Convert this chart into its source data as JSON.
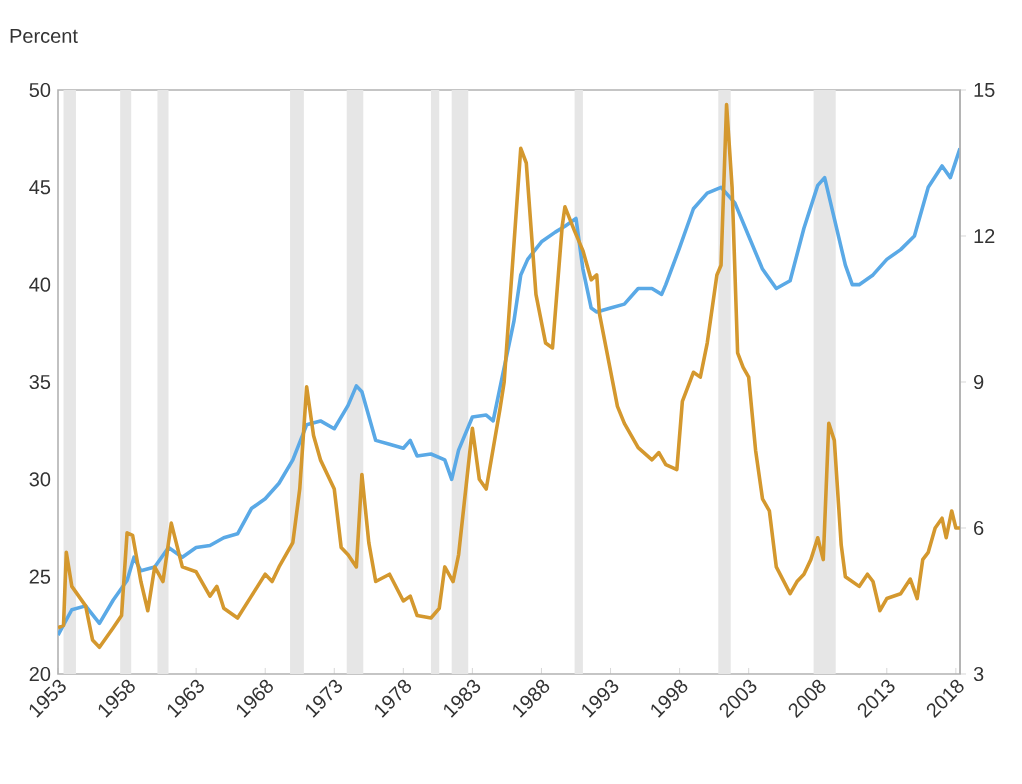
{
  "chart_data": {
    "type": "line",
    "ylabel": "Percent",
    "xlim": [
      1953,
      2018.3
    ],
    "xticks": [
      1953,
      1958,
      1963,
      1968,
      1973,
      1978,
      1983,
      1988,
      1993,
      1998,
      2003,
      2008,
      2013,
      2018
    ],
    "ylim": [
      20,
      50
    ],
    "yticks": [
      20,
      25,
      30,
      35,
      40,
      45,
      50
    ],
    "y2lim": [
      3,
      15
    ],
    "y2ticks": [
      3,
      6,
      9,
      12,
      15
    ],
    "marker": "none",
    "line_style": "solid",
    "bands": [
      {
        "axis": "x",
        "from": 1953.4,
        "to": 1954.3,
        "color": "#e6e6e6"
      },
      {
        "axis": "x",
        "from": 1957.5,
        "to": 1958.3,
        "color": "#e6e6e6"
      },
      {
        "axis": "x",
        "from": 1960.2,
        "to": 1961.0,
        "color": "#e6e6e6"
      },
      {
        "axis": "x",
        "from": 1969.8,
        "to": 1970.8,
        "color": "#e6e6e6"
      },
      {
        "axis": "x",
        "from": 1973.9,
        "to": 1975.1,
        "color": "#e6e6e6"
      },
      {
        "axis": "x",
        "from": 1980.0,
        "to": 1980.6,
        "color": "#e6e6e6"
      },
      {
        "axis": "x",
        "from": 1981.5,
        "to": 1982.7,
        "color": "#e6e6e6"
      },
      {
        "axis": "x",
        "from": 1990.4,
        "to": 1991.0,
        "color": "#e6e6e6"
      },
      {
        "axis": "x",
        "from": 2000.8,
        "to": 2001.7,
        "color": "#e6e6e6"
      },
      {
        "axis": "x",
        "from": 2007.7,
        "to": 2009.3,
        "color": "#e6e6e6"
      }
    ],
    "series": [
      {
        "color": "#5aa9e6",
        "x": [
          1953,
          1954,
          1955,
          1956,
          1957,
          1958,
          1958.5,
          1959,
          1960,
          1961,
          1962,
          1963,
          1964,
          1965,
          1966,
          1967,
          1968,
          1969,
          1970,
          1971,
          1972,
          1973,
          1974,
          1974.6,
          1975,
          1976,
          1977,
          1978,
          1978.5,
          1979,
          1980,
          1981,
          1981.5,
          1982,
          1983,
          1984,
          1984.5,
          1985.2,
          1986,
          1986.5,
          1987,
          1988,
          1989,
          1989.7,
          1990.5,
          1991,
          1991.6,
          1992,
          1993,
          1994,
          1995,
          1996,
          1996.7,
          1997,
          1998,
          1999,
          2000,
          2001,
          2002,
          2003,
          2004,
          2005,
          2006,
          2007,
          2008,
          2008.5,
          2009,
          2010,
          2010.5,
          2011,
          2012,
          2013,
          2014,
          2015,
          2016,
          2017,
          2017.6,
          2018.3
        ],
        "values": [
          22.0,
          23.3,
          23.5,
          22.6,
          23.8,
          24.8,
          26.0,
          25.3,
          25.5,
          26.5,
          26.0,
          26.5,
          26.6,
          27.0,
          27.2,
          28.5,
          29.0,
          29.8,
          31.0,
          32.8,
          33.0,
          32.6,
          33.8,
          34.8,
          34.5,
          32.0,
          31.8,
          31.6,
          32.0,
          31.2,
          31.3,
          31.0,
          30.0,
          31.5,
          33.2,
          33.3,
          33.0,
          35.4,
          38.1,
          40.5,
          41.3,
          42.2,
          42.7,
          43.0,
          43.4,
          40.8,
          38.8,
          38.6,
          38.8,
          39.0,
          39.8,
          39.8,
          39.5,
          40.0,
          41.9,
          43.9,
          44.7,
          45.0,
          44.2,
          42.5,
          40.8,
          39.8,
          40.2,
          42.9,
          45.1,
          45.5,
          44.0,
          41.0,
          40.0,
          40.0,
          40.5,
          41.3,
          41.8,
          42.5,
          45.0,
          46.1,
          45.5,
          47.0
        ]
      },
      {
        "color": "#d4982e",
        "axis": "y2",
        "x": [
          1953,
          1953.4,
          1953.6,
          1954,
          1955,
          1955.5,
          1956,
          1957,
          1957.6,
          1958,
          1958.4,
          1959,
          1959.5,
          1960,
          1960.6,
          1961.2,
          1962,
          1963,
          1964,
          1964.5,
          1965,
          1966,
          1967,
          1968,
          1968.5,
          1969,
          1970,
          1970.5,
          1971,
          1971.5,
          1972,
          1973,
          1973.5,
          1974,
          1974.6,
          1975,
          1975.5,
          1976,
          1977,
          1978,
          1978.5,
          1979,
          1980,
          1980.6,
          1981,
          1981.6,
          1982,
          1983,
          1983.5,
          1984,
          1985,
          1985.3,
          1986.5,
          1986.9,
          1987.6,
          1988.3,
          1988.8,
          1989.5,
          1989.7,
          1990.4,
          1991,
          1991.6,
          1992,
          1992.2,
          1993.5,
          1994,
          1995,
          1996,
          1996.5,
          1997,
          1997.8,
          1998.2,
          1999,
          1999.5,
          2000,
          2000.7,
          2001,
          2001.4,
          2001.8,
          2002.2,
          2002.6,
          2003,
          2003.5,
          2004,
          2004.5,
          2005,
          2006,
          2006.5,
          2007,
          2007.5,
          2008,
          2008.4,
          2008.8,
          2009.2,
          2009.7,
          2010,
          2011,
          2011.6,
          2012,
          2012.5,
          2013,
          2014,
          2014.7,
          2015.2,
          2015.6,
          2016,
          2016.5,
          2017,
          2017.3,
          2017.7,
          2018,
          2018.3
        ],
        "values": [
          3.95,
          4.0,
          5.5,
          4.8,
          4.4,
          3.7,
          3.55,
          3.95,
          4.2,
          5.9,
          5.85,
          4.9,
          4.3,
          5.2,
          4.9,
          6.1,
          5.2,
          5.1,
          4.6,
          4.8,
          4.35,
          4.15,
          4.6,
          5.05,
          4.9,
          5.2,
          5.7,
          6.8,
          8.9,
          7.9,
          7.4,
          6.8,
          5.6,
          5.45,
          5.2,
          7.1,
          5.7,
          4.9,
          5.05,
          4.5,
          4.6,
          4.2,
          4.15,
          4.35,
          5.2,
          4.9,
          5.45,
          8.05,
          7.0,
          6.8,
          8.45,
          9.0,
          13.8,
          13.5,
          10.8,
          9.8,
          9.7,
          12.2,
          12.6,
          12.1,
          11.7,
          11.1,
          11.2,
          10.4,
          8.5,
          8.15,
          7.65,
          7.4,
          7.55,
          7.3,
          7.2,
          8.6,
          9.2,
          9.1,
          9.8,
          11.2,
          11.4,
          14.7,
          13.0,
          9.6,
          9.3,
          9.1,
          7.6,
          6.6,
          6.35,
          5.2,
          4.65,
          4.9,
          5.05,
          5.35,
          5.8,
          5.35,
          8.15,
          7.8,
          5.65,
          5.0,
          4.8,
          5.05,
          4.9,
          4.3,
          4.55,
          4.65,
          4.95,
          4.55,
          5.35,
          5.5,
          6.0,
          6.2,
          5.8,
          6.35,
          6.0,
          6.0
        ]
      }
    ]
  }
}
